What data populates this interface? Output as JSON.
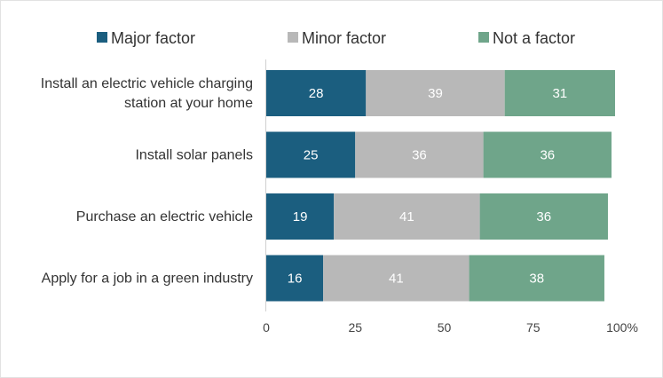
{
  "chart_data": {
    "type": "bar",
    "orientation": "horizontal",
    "stacked": true,
    "categories": [
      [
        "Install an electric vehicle charging",
        "station at your home"
      ],
      [
        "Install solar panels"
      ],
      [
        "Purchase an electric vehicle"
      ],
      [
        "Apply for a job in a green industry"
      ]
    ],
    "series": [
      {
        "name": "Major factor",
        "color": "#1b5e7f",
        "values": [
          28,
          25,
          19,
          16
        ]
      },
      {
        "name": "Minor factor",
        "color": "#b8b8b8",
        "values": [
          39,
          36,
          41,
          41
        ]
      },
      {
        "name": "Not a factor",
        "color": "#6fa58a",
        "values": [
          31,
          36,
          36,
          38
        ]
      }
    ],
    "xlim": [
      0,
      100
    ],
    "xticks": [
      "0",
      "25",
      "50",
      "75",
      "100%"
    ],
    "legend": "top",
    "grid": false
  }
}
